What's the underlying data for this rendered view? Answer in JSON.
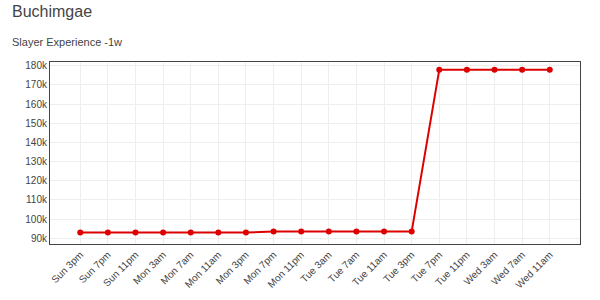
{
  "chart_data": {
    "type": "line",
    "title": "Buchimgae",
    "subtitle": "Slayer Experience -1w",
    "categories": [
      "Sun 3pm",
      "Sun 7pm",
      "Sun 11pm",
      "Mon 3am",
      "Mon 7am",
      "Mon 11am",
      "Mon 3pm",
      "Mon 7pm",
      "Mon 11pm",
      "Tue 3am",
      "Tue 7am",
      "Tue 11am",
      "Tue 3pm",
      "Tue 7pm",
      "Tue 11pm",
      "Wed 3am",
      "Wed 7am",
      "Wed 11am"
    ],
    "values": [
      93000,
      93000,
      93000,
      93000,
      93000,
      93000,
      93000,
      93500,
      93500,
      93500,
      93500,
      93500,
      93500,
      178000,
      178000,
      178000,
      178000,
      178000
    ],
    "color": "#dd0000",
    "marker": "circle",
    "ylim": [
      87000,
      182000
    ],
    "yticks": [
      {
        "value": 90000,
        "label": "90k"
      },
      {
        "value": 100000,
        "label": "100k"
      },
      {
        "value": 110000,
        "label": "110k"
      },
      {
        "value": 120000,
        "label": "120k"
      },
      {
        "value": 130000,
        "label": "130k"
      },
      {
        "value": 140000,
        "label": "140k"
      },
      {
        "value": 150000,
        "label": "150k"
      },
      {
        "value": 160000,
        "label": "160k"
      },
      {
        "value": 170000,
        "label": "170k"
      },
      {
        "value": 180000,
        "label": "180k"
      }
    ],
    "grid": true
  }
}
